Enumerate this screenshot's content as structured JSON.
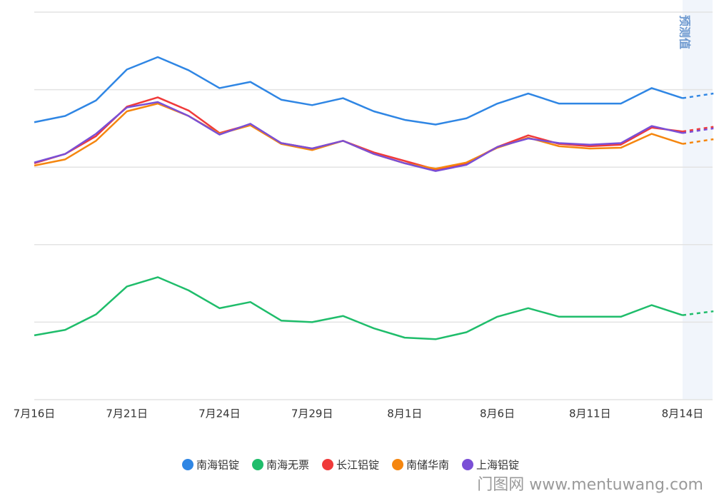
{
  "chart_data": {
    "type": "line",
    "categories": [
      "7月16日",
      null,
      null,
      "7月21日",
      null,
      null,
      "7月24日",
      null,
      null,
      "7月29日",
      null,
      null,
      "8月1日",
      null,
      null,
      "8月6日",
      null,
      null,
      "8月11日",
      null,
      null,
      "8月14日"
    ],
    "forecast_label": "预测值",
    "series": [
      {
        "name": "南海铝锭",
        "color": "#2f86e4",
        "values": [
          358,
          366,
          386,
          426,
          442,
          425,
          402,
          410,
          387,
          380,
          389,
          372,
          361,
          355,
          363,
          382,
          395,
          382,
          382,
          382,
          402,
          389
        ],
        "forecast": 395
      },
      {
        "name": "南海无票",
        "color": "#1fbd6b",
        "values": [
          83,
          90,
          110,
          146,
          158,
          141,
          118,
          126,
          102,
          100,
          108,
          92,
          80,
          78,
          87,
          107,
          118,
          107,
          107,
          107,
          122,
          109
        ],
        "forecast": 114
      },
      {
        "name": "长江铝锭",
        "color": "#f03a3a",
        "values": [
          305,
          317,
          340,
          378,
          390,
          373,
          344,
          355,
          331,
          324,
          334,
          319,
          308,
          297,
          305,
          326,
          341,
          330,
          327,
          329,
          351,
          346
        ],
        "forecast": 352
      },
      {
        "name": "南储华南",
        "color": "#f5860f",
        "values": [
          302,
          310,
          334,
          372,
          382,
          366,
          343,
          354,
          330,
          322,
          334,
          317,
          305,
          298,
          306,
          325,
          338,
          327,
          324,
          325,
          343,
          330
        ],
        "forecast": 336
      },
      {
        "name": "上海铝锭",
        "color": "#7a4fd6",
        "values": [
          306,
          317,
          343,
          377,
          384,
          366,
          342,
          356,
          331,
          324,
          334,
          317,
          305,
          295,
          303,
          326,
          337,
          331,
          329,
          331,
          353,
          344
        ],
        "forecast": 350
      }
    ],
    "ylim": [
      0,
      500
    ],
    "yticks": [
      0,
      100,
      200,
      300,
      400,
      500
    ],
    "show_ytick_labels": false,
    "grid": true,
    "legend": "bottom",
    "watermark": "门图网 www.mentuwang.com"
  }
}
